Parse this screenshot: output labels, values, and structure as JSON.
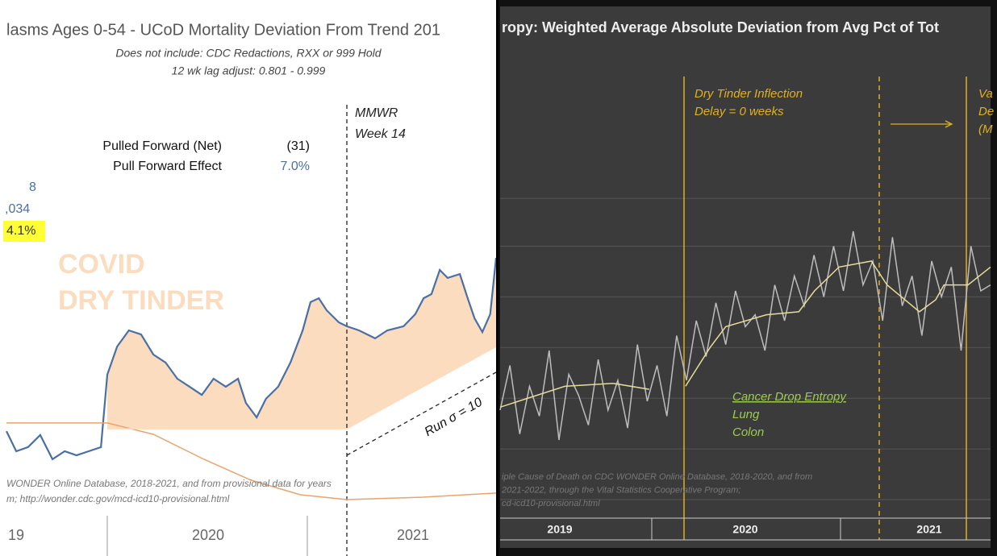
{
  "chart_data": [
    {
      "type": "line",
      "title": "lasms Ages 0-54 - UCoD Mortality Deviation From Trend  201",
      "subtitle": [
        "Does not include: CDC Redactions,  RXX or 999 Hold",
        "12 wk lag adjust: 0.801 - 0.999"
      ],
      "annotations": [
        "Pulled Forward (Net)",
        "(31)",
        "Pull Forward Effect",
        "7.0%",
        "8",
        ",034",
        "4.1%",
        "COVID",
        "DRY TINDER",
        "MMWR",
        "Week 14",
        "Run σ = 10"
      ],
      "source": [
        "WONDER Online Database, 2018-2021, and from provisional data for years",
        "m; http://wonder.cdc.gov/mcd-icd10-provisional.html"
      ],
      "x_labels": [
        "19",
        "2020",
        "2021"
      ],
      "xlim": [
        0,
        100
      ],
      "ylim": [
        0,
        100
      ],
      "area_color": "#fbdcbf",
      "series": [
        {
          "color": "#4a6fa5",
          "x": [
            0,
            2,
            4.4,
            6.9,
            9.4,
            11.9,
            14.3,
            16.8,
            19.3,
            20.6,
            22.6,
            25,
            27.5,
            30,
            32.5,
            34.9,
            37.4,
            39.9,
            42.3,
            44.8,
            47.3,
            48.9,
            51.1,
            53,
            55.5,
            58,
            60.5,
            62.1,
            63.8,
            65.4,
            67.9,
            69.5,
            72,
            75.3,
            77.8,
            81.1,
            83.5,
            85.2,
            86.8,
            88.5,
            90.1,
            92.6,
            94.2,
            95.6,
            97.2,
            98.8,
            100
          ],
          "values": [
            28.3,
            20,
            21.7,
            26.7,
            16.7,
            20,
            18.3,
            20,
            21.7,
            51.7,
            63.3,
            70,
            68.3,
            60,
            56.7,
            50,
            46.7,
            43.3,
            50,
            46.7,
            50,
            40,
            34,
            41.7,
            46.7,
            56.7,
            70,
            81.7,
            83.3,
            78.3,
            73.3,
            71.7,
            70,
            66.7,
            70,
            71.7,
            76.7,
            83.3,
            85,
            95,
            91.7,
            93.3,
            83.3,
            75,
            69.3,
            76.7,
            100
          ]
        },
        {
          "color": "#e8a46c",
          "x": [
            0,
            20.6,
            30,
            40,
            50,
            60,
            69.5,
            85,
            100
          ],
          "values": [
            31.7,
            31.7,
            27,
            17,
            8,
            2,
            0,
            1,
            2.7
          ]
        },
        {
          "color": "#fbdcbf",
          "x": [
            20.6,
            69.5,
            100
          ],
          "values": [
            29.3,
            29.3,
            63.3
          ]
        }
      ]
    },
    {
      "type": "line",
      "title": "ropy: Weighted Average Absolute Deviation from Avg Pct of Tot",
      "annotations": [
        "Dry Tinder Inflection",
        "Delay = 0 weeks",
        "Va",
        "De",
        "(M",
        "Cancer Drop Entropy",
        "Lung",
        "Colon"
      ],
      "source": [
        "iple Cause of Death on CDC WONDER Online Database, 2018-2020, and from",
        "2021-2022, through the Vital Statistics Cooperative Program;",
        "cd-icd10-provisional.html"
      ],
      "x_labels": [
        "2019",
        "2020",
        "2021"
      ],
      "xlim": [
        0,
        100
      ],
      "ylim": [
        0,
        100
      ],
      "grid": true,
      "yticks": [
        0,
        17,
        34,
        51,
        68,
        85,
        101
      ],
      "series": [
        {
          "color": "#bdbdbd",
          "x": [
            0,
            2,
            4,
            6,
            8,
            10,
            12,
            14,
            16,
            18,
            20,
            22,
            24,
            26,
            28,
            30,
            32,
            34,
            36,
            38,
            40,
            42,
            44,
            46,
            48,
            50,
            52,
            54,
            56,
            58,
            60,
            62,
            64,
            66,
            68,
            70,
            72,
            74,
            76,
            78,
            80,
            82,
            84,
            86,
            88,
            90,
            92,
            94,
            96,
            98,
            100
          ],
          "values": [
            30,
            45,
            22,
            38,
            28,
            50,
            20,
            42,
            35,
            25,
            47,
            30,
            40,
            24,
            52,
            33,
            45,
            28,
            55,
            40,
            60,
            48,
            66,
            52,
            70,
            58,
            62,
            50,
            72,
            60,
            75,
            65,
            82,
            68,
            85,
            70,
            90,
            72,
            80,
            60,
            88,
            65,
            75,
            55,
            80,
            68,
            78,
            50,
            85,
            70,
            72
          ]
        },
        {
          "color": "#e6dc9a",
          "x": [
            0,
            13.2,
            23,
            30.4,
            33,
            37.8,
            42.8,
            46,
            54.3,
            60.9,
            64.1,
            69.1,
            75.7,
            78.9,
            85.5,
            88.8,
            90.5,
            95.4,
            100
          ],
          "values": [
            31,
            38,
            39,
            37,
            null,
            38,
            51,
            58,
            62,
            63,
            70,
            78,
            80,
            72,
            63,
            67,
            72,
            72,
            78
          ]
        }
      ]
    }
  ]
}
